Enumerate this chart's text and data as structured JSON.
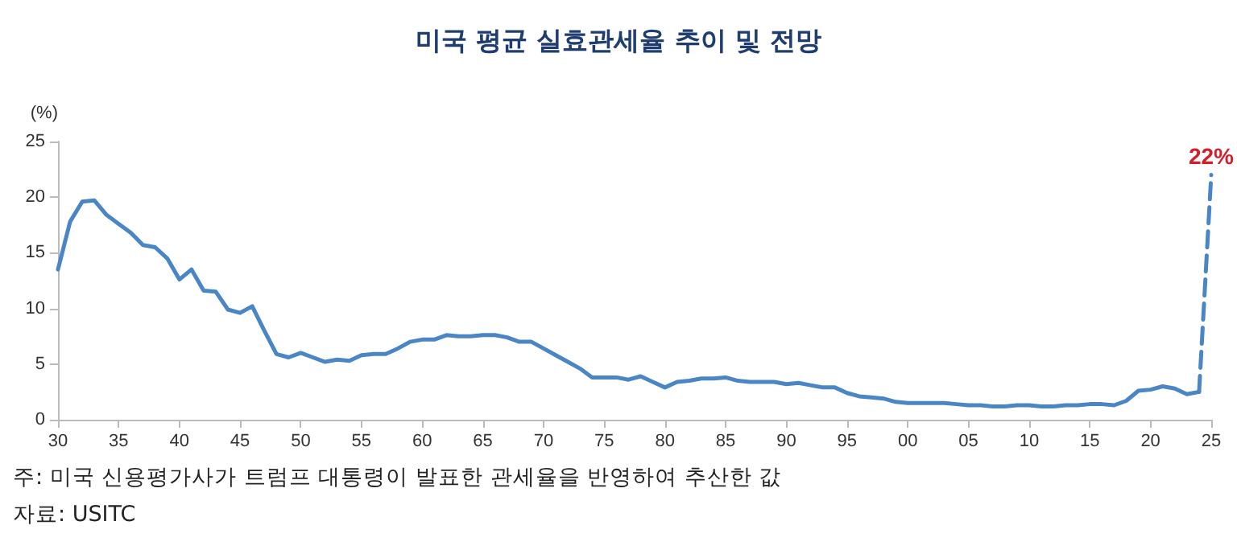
{
  "chart_data": {
    "type": "line",
    "title": "미국 평균 실효관세율 추이 및 전망",
    "ylabel": "(%)",
    "series": [
      {
        "color": "#4a86c5",
        "line_style": "solid",
        "x": [
          1930,
          1931,
          1932,
          1933,
          1934,
          1935,
          1936,
          1937,
          1938,
          1939,
          1940,
          1941,
          1942,
          1943,
          1944,
          1945,
          1946,
          1947,
          1948,
          1949,
          1950,
          1951,
          1952,
          1953,
          1954,
          1955,
          1956,
          1957,
          1958,
          1959,
          1960,
          1961,
          1962,
          1963,
          1964,
          1965,
          1966,
          1967,
          1968,
          1969,
          1970,
          1971,
          1972,
          1973,
          1974,
          1975,
          1976,
          1977,
          1978,
          1979,
          1980,
          1981,
          1982,
          1983,
          1984,
          1985,
          1986,
          1987,
          1988,
          1989,
          1990,
          1991,
          1992,
          1993,
          1994,
          1995,
          1996,
          1997,
          1998,
          1999,
          2000,
          2001,
          2002,
          2003,
          2004,
          2005,
          2006,
          2007,
          2008,
          2009,
          2010,
          2011,
          2012,
          2013,
          2014,
          2015,
          2016,
          2017,
          2018,
          2019,
          2020,
          2021,
          2022,
          2023,
          2024
        ],
        "values": [
          13.5,
          17.8,
          19.6,
          19.7,
          18.4,
          17.6,
          16.8,
          15.7,
          15.5,
          14.5,
          12.6,
          13.5,
          11.6,
          11.5,
          9.9,
          9.6,
          10.2,
          8.0,
          5.9,
          5.6,
          6.0,
          5.6,
          5.2,
          5.4,
          5.3,
          5.8,
          5.9,
          5.9,
          6.4,
          7.0,
          7.2,
          7.2,
          7.6,
          7.5,
          7.5,
          7.6,
          7.6,
          7.4,
          7.0,
          7.0,
          6.4,
          5.8,
          5.2,
          4.6,
          3.8,
          3.8,
          3.8,
          3.6,
          3.9,
          3.4,
          2.9,
          3.4,
          3.5,
          3.7,
          3.7,
          3.8,
          3.5,
          3.4,
          3.4,
          3.4,
          3.2,
          3.3,
          3.1,
          2.9,
          2.9,
          2.4,
          2.1,
          2.0,
          1.9,
          1.6,
          1.5,
          1.5,
          1.5,
          1.5,
          1.4,
          1.3,
          1.3,
          1.2,
          1.2,
          1.3,
          1.3,
          1.2,
          1.2,
          1.3,
          1.3,
          1.4,
          1.4,
          1.3,
          1.7,
          2.6,
          2.7,
          3.0,
          2.8,
          2.3,
          2.5
        ]
      },
      {
        "color": "#4a86c5",
        "line_style": "dashed",
        "x": [
          2024,
          2025
        ],
        "values": [
          2.5,
          22
        ],
        "value_labels": [
          null,
          "22%"
        ]
      }
    ],
    "xlim": [
      1930,
      2025
    ],
    "xticks": [
      {
        "value": 1930,
        "label": "30"
      },
      {
        "value": 1935,
        "label": "35"
      },
      {
        "value": 1940,
        "label": "40"
      },
      {
        "value": 1945,
        "label": "45"
      },
      {
        "value": 1950,
        "label": "50"
      },
      {
        "value": 1955,
        "label": "55"
      },
      {
        "value": 1960,
        "label": "60"
      },
      {
        "value": 1965,
        "label": "65"
      },
      {
        "value": 1970,
        "label": "70"
      },
      {
        "value": 1975,
        "label": "75"
      },
      {
        "value": 1980,
        "label": "80"
      },
      {
        "value": 1985,
        "label": "85"
      },
      {
        "value": 1990,
        "label": "90"
      },
      {
        "value": 1995,
        "label": "95"
      },
      {
        "value": 2000,
        "label": "00"
      },
      {
        "value": 2005,
        "label": "05"
      },
      {
        "value": 2010,
        "label": "10"
      },
      {
        "value": 2015,
        "label": "15"
      },
      {
        "value": 2020,
        "label": "20"
      },
      {
        "value": 2025,
        "label": "25"
      }
    ],
    "ylim": [
      0,
      25
    ],
    "yticks": [
      0,
      5,
      10,
      15,
      20,
      25
    ],
    "grid": false,
    "marker": "none",
    "annotations": [
      "주: 미국 신용평가사가 트럼프 대통령이 발표한 관세율을 반영하여 추산한 값",
      "자료: USITC"
    ]
  }
}
